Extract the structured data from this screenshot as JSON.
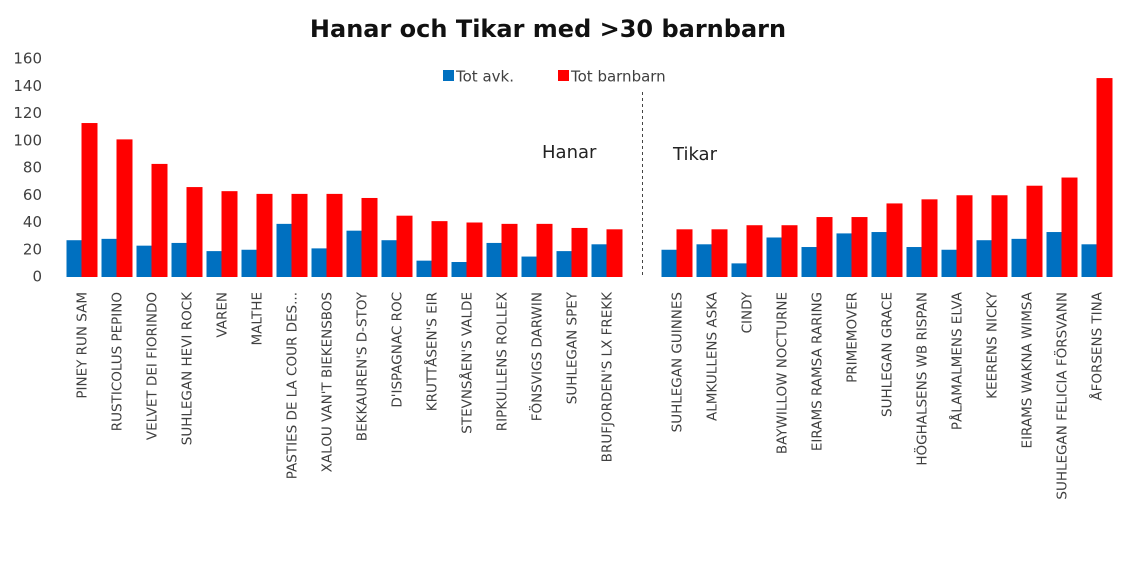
{
  "chart_data": {
    "type": "bar",
    "title": "Hanar och Tikar med >30 barnbarn",
    "categories": [
      "PINEY RUN SAM",
      "RUSTICOLUS PEPINO",
      "VELVET DEI FIORINDO",
      "SUHLEGAN HEVI ROCK",
      "VAREN",
      "MALTHE",
      "PASTIES DE LA COUR DES...",
      "XALOU VAN'T BIEKENSBOS",
      "BEKKAUREN'S D-STOY",
      "D'ISPAGNAC ROC",
      "KRUTTÅSEN'S EIR",
      "STEVNSÅEN'S VALDE",
      "RIPKULLENS ROLLEX",
      "FÖNSVIGS DARWIN",
      "SUHLEGAN SPEY",
      "BRUFJORDEN'S LX FREKK",
      null,
      "SUHLEGAN GUINNES",
      "ALMKULLENS ASKA",
      "CINDY",
      "BAYWILLOW NOCTURNE",
      "EIRAMS RAMSA RARING",
      "PRIMEMOVER",
      "SUHLEGAN GRACE",
      "HÖGHALSENS WB RISPAN",
      "PÅLAMALMENS ELVA",
      "KEERENS NICKY",
      "EIRAMS WAKNA WIMSA",
      "SUHLEGAN FELICIA FÖRSVANN",
      "ÅFORSENS TINA"
    ],
    "series": [
      {
        "name": "Tot avk.",
        "color": "#0070c0",
        "values": [
          27,
          28,
          23,
          25,
          19,
          20,
          39,
          21,
          34,
          27,
          12,
          11,
          25,
          15,
          19,
          24,
          null,
          20,
          24,
          10,
          29,
          22,
          32,
          33,
          22,
          20,
          27,
          28,
          33,
          24
        ]
      },
      {
        "name": "Tot barnbarn",
        "color": "#ff0000",
        "values": [
          113,
          101,
          83,
          66,
          63,
          61,
          61,
          61,
          58,
          45,
          41,
          40,
          39,
          39,
          36,
          35,
          null,
          35,
          35,
          38,
          38,
          44,
          44,
          54,
          57,
          60,
          60,
          67,
          73,
          146
        ]
      }
    ],
    "annotations": [
      "Hanar",
      "Tikar"
    ],
    "ylim": [
      0,
      160
    ],
    "yticks": [
      0,
      20,
      40,
      60,
      80,
      100,
      120,
      140,
      160
    ],
    "grid": false,
    "legend": "top"
  }
}
